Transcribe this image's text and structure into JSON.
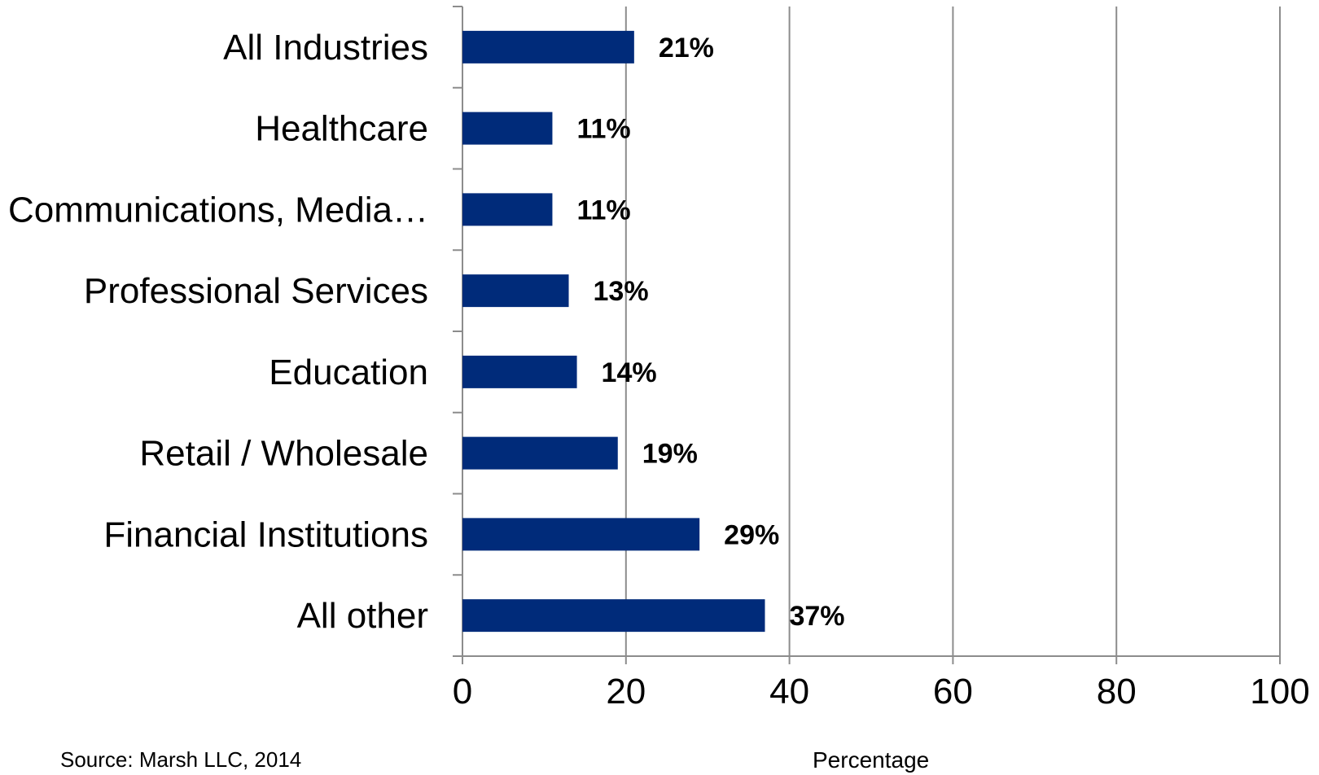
{
  "chart_data": {
    "type": "bar",
    "orientation": "horizontal",
    "categories": [
      "All Industries",
      "Healthcare",
      "Communications, Media…",
      "Professional Services",
      "Education",
      "Retail / Wholesale",
      "Financial Institutions",
      "All other"
    ],
    "values": [
      21,
      11,
      11,
      13,
      14,
      19,
      29,
      37
    ],
    "data_labels": [
      "21%",
      "11%",
      "11%",
      "13%",
      "14%",
      "19%",
      "29%",
      "37%"
    ],
    "xlabel": "Percentage",
    "xlim": [
      0,
      100
    ],
    "xticks": [
      0,
      20,
      40,
      60,
      80,
      100
    ],
    "grid": "vertical",
    "bar_color": "#002b7a",
    "grid_color": "#8c8c8c"
  },
  "source": "Source: Marsh LLC, 2014"
}
